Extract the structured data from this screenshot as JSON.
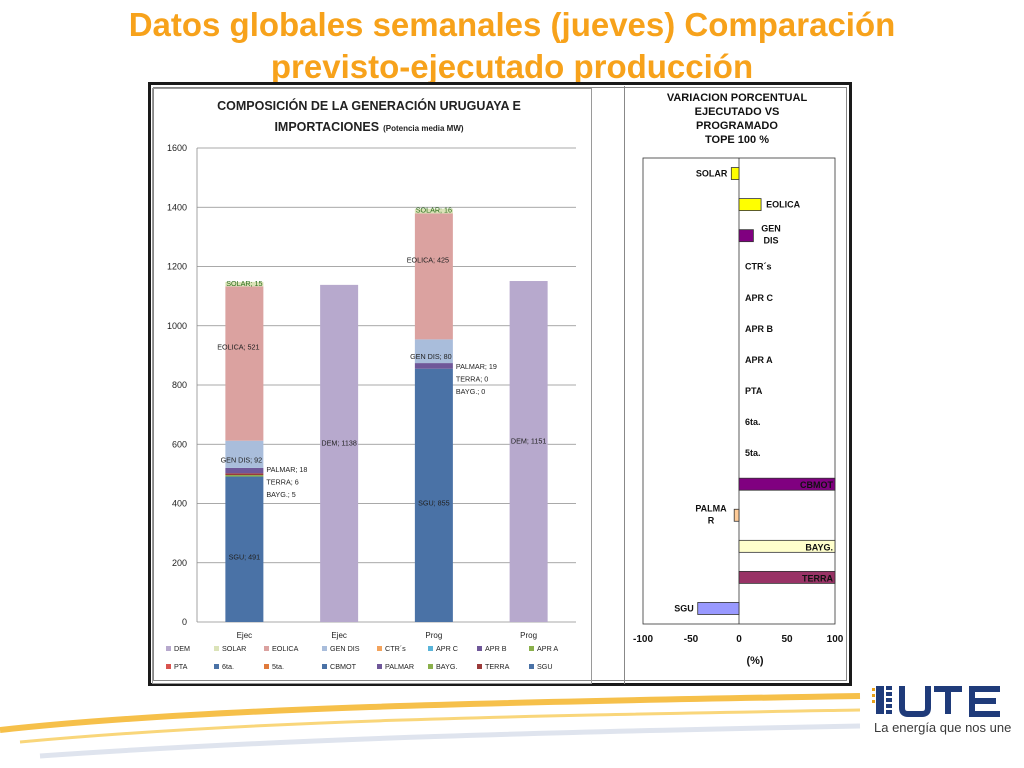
{
  "slide": {
    "title_line1": "Datos globales semanales  (jueves) Comparación",
    "title_line2": "previsto-ejecutado producción"
  },
  "colors": {
    "title": "#f7a21b",
    "SGU": "#4a72a6",
    "DEM": "#b7a9cd",
    "EOLICA": "#dba2a0",
    "GEN_DIS": "#a9bddb",
    "PALMAR": "#6f5799",
    "TERRA": "#9b3a3a",
    "BAYG": "#8ab04b",
    "SOLAR": "#dbe3b8",
    "right_yellow": "#ffff00",
    "right_purple": "#800080",
    "right_cream": "#ffffcc",
    "right_wine": "#993366",
    "right_blue": "#9999ff",
    "right_peach": "#ffcc99"
  },
  "left_chart": {
    "title_main_1": "COMPOSICIÓN DE LA GENERACIÓN URUGUAYA E",
    "title_main_2": "IMPORTACIONES",
    "title_small": "(Potencia media MW)"
  },
  "right_chart": {
    "title_1": "VARIACION PORCENTUAL",
    "title_2": "EJECUTADO VS",
    "title_3": "PROGRAMADO",
    "title_4": "TOPE 100 %",
    "xlabel": "(%)"
  },
  "logo": {
    "tagline": "La energía que nos une"
  },
  "chart_data": [
    {
      "type": "bar",
      "stacked": true,
      "title": "COMPOSICIÓN DE LA GENERACIÓN URUGUAYA E IMPORTACIONES (Potencia media MW)",
      "categories": [
        "Ejec",
        "Ejec",
        "Prog",
        "Prog"
      ],
      "ylim": [
        0,
        1600
      ],
      "yticks": [
        0,
        200,
        400,
        600,
        800,
        1000,
        1200,
        1400,
        1600
      ],
      "grid": true,
      "legend_position": "bottom",
      "legend": [
        "DEM",
        "SOLAR",
        "EOLICA",
        "GEN DIS",
        "CTR´s",
        "APR C",
        "APR B",
        "APR A",
        "PTA",
        "6ta.",
        "5ta.",
        "CBMOT",
        "PALMAR",
        "BAYG.",
        "TERRA",
        "SGU"
      ],
      "legend_colors": [
        "#b7a9cd",
        "#dbe3b8",
        "#dba2a0",
        "#a9bddb",
        "#f3a35c",
        "#59b4d9",
        "#6f5799",
        "#8ab04b",
        "#d9534f",
        "#4a72a6",
        "#e07a3b",
        "#4a72a6",
        "#6f5799",
        "#8ab04b",
        "#9b3a3a",
        "#4a72a6"
      ],
      "bars": [
        {
          "category": "Ejec",
          "segments": [
            {
              "name": "SGU",
              "value": 491,
              "label": "SGU; 491"
            },
            {
              "name": "BAYG.",
              "value": 5,
              "label": "BAYG.; 5"
            },
            {
              "name": "TERRA",
              "value": 6,
              "label": "TERRA; 6"
            },
            {
              "name": "PALMAR",
              "value": 18,
              "label": "PALMAR; 18"
            },
            {
              "name": "GEN DIS",
              "value": 92,
              "label": "GEN DIS; 92"
            },
            {
              "name": "EOLICA",
              "value": 521,
              "label": "EOLICA; 521"
            },
            {
              "name": "SOLAR",
              "value": 15,
              "label": "SOLAR; 15"
            }
          ]
        },
        {
          "category": "Ejec",
          "segments": [
            {
              "name": "DEM",
              "value": 1138,
              "label": "DEM; 1138"
            }
          ]
        },
        {
          "category": "Prog",
          "segments": [
            {
              "name": "SGU",
              "value": 855,
              "label": "SGU; 855"
            },
            {
              "name": "BAYG.",
              "value": 0,
              "label": "BAYG.; 0"
            },
            {
              "name": "TERRA",
              "value": 0,
              "label": "TERRA; 0"
            },
            {
              "name": "PALMAR",
              "value": 19,
              "label": "PALMAR; 19"
            },
            {
              "name": "GEN DIS",
              "value": 80,
              "label": "GEN DIS; 80"
            },
            {
              "name": "EOLICA",
              "value": 425,
              "label": "EOLICA; 425"
            },
            {
              "name": "SOLAR",
              "value": 16,
              "label": "SOLAR; 16"
            }
          ]
        },
        {
          "category": "Prog",
          "segments": [
            {
              "name": "DEM",
              "value": 1151,
              "label": "DEM; 1151"
            }
          ]
        }
      ]
    },
    {
      "type": "bar",
      "orientation": "horizontal",
      "title": "VARIACION PORCENTUAL EJECUTADO VS PROGRAMADO TOPE 100 %",
      "xlabel": "(%)",
      "xlim": [
        -100,
        100
      ],
      "xticks": [
        -100,
        -50,
        0,
        50,
        100
      ],
      "categories": [
        "SOLAR",
        "EOLICA",
        "GEN DIS",
        "CTR´s",
        "APR C",
        "APR B",
        "APR A",
        "PTA",
        "6ta.",
        "5ta.",
        "CBMOT",
        "PALMAR",
        "BAYG.",
        "TERRA",
        "SGU"
      ],
      "values": [
        -8,
        23,
        15,
        0,
        0,
        0,
        0,
        0,
        0,
        0,
        100,
        -5,
        100,
        100,
        -43
      ],
      "bar_colors": [
        "#ffff00",
        "#ffff00",
        "#800080",
        null,
        null,
        null,
        null,
        null,
        null,
        null,
        "#800080",
        "#ffcc99",
        "#ffffcc",
        "#993366",
        "#9999ff"
      ]
    }
  ]
}
